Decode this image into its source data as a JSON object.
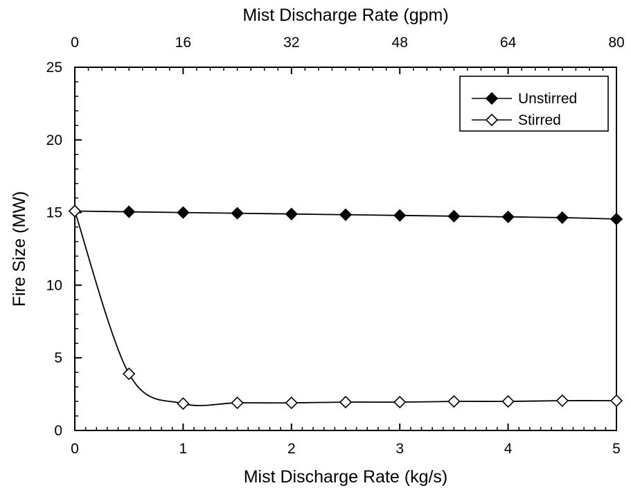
{
  "chart_data": {
    "type": "line",
    "title": "",
    "xlabel": "Mist Discharge Rate (kg/s)",
    "x2label": "Mist Discharge Rate (gpm)",
    "ylabel": "Fire Size (MW)",
    "xlim": [
      0,
      5
    ],
    "x2lim": [
      0,
      80
    ],
    "ylim": [
      0,
      25
    ],
    "xticks": [
      0,
      1,
      2,
      3,
      4,
      5
    ],
    "x2ticks": [
      0,
      16,
      32,
      48,
      64,
      80
    ],
    "yticks": [
      0,
      5,
      10,
      15,
      20,
      25
    ],
    "grid": false,
    "legend_position": "top-right",
    "series": [
      {
        "name": "Unstirred",
        "marker": "filled-diamond",
        "color": "#000000",
        "x": [
          0,
          0.5,
          1,
          1.5,
          2,
          2.5,
          3,
          3.5,
          4,
          4.5,
          5
        ],
        "y": [
          15.1,
          15.05,
          15.0,
          14.95,
          14.9,
          14.85,
          14.8,
          14.75,
          14.7,
          14.65,
          14.55
        ]
      },
      {
        "name": "Stirred",
        "marker": "open-diamond",
        "color": "#000000",
        "x": [
          0,
          0.5,
          1,
          1.5,
          2,
          2.5,
          3,
          3.5,
          4,
          4.5,
          5
        ],
        "y": [
          15.1,
          3.9,
          1.85,
          1.9,
          1.9,
          1.95,
          1.95,
          2.0,
          2.0,
          2.05,
          2.05
        ]
      }
    ]
  }
}
